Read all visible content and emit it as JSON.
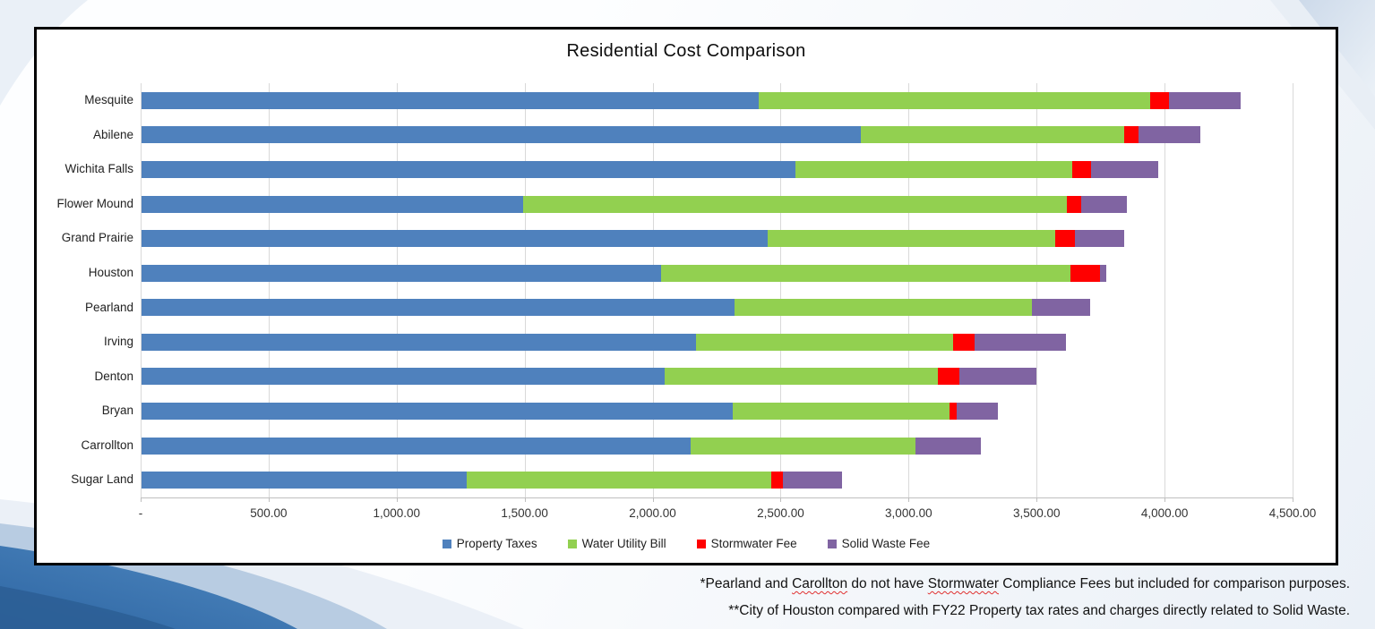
{
  "chart_data": {
    "type": "bar",
    "stacked": true,
    "orientation": "horizontal",
    "title": "Residential Cost Comparison",
    "categories": [
      "Mesquite",
      "Abilene",
      "Wichita Falls",
      "Flower Mound",
      "Grand Prairie",
      "Houston",
      "Pearland",
      "Irving",
      "Denton",
      "Bryan",
      "Carrollton",
      "Sugar Land"
    ],
    "series": [
      {
        "name": "Property Taxes",
        "color": "#4F81BD",
        "values": [
          2410,
          2810,
          2555,
          1490,
          2445,
          2030,
          2315,
          2165,
          2045,
          2310,
          2145,
          1270
        ]
      },
      {
        "name": "Water Utility Bill",
        "color": "#92D050",
        "values": [
          1530,
          1030,
          1080,
          2125,
          1125,
          1600,
          1165,
          1005,
          1065,
          845,
          880,
          1190
        ]
      },
      {
        "name": "Stormwater Fee",
        "color": "#FF0000",
        "values": [
          75,
          55,
          75,
          55,
          75,
          115,
          0,
          85,
          85,
          30,
          0,
          45
        ]
      },
      {
        "name": "Solid Waste Fee",
        "color": "#8064A2",
        "values": [
          280,
          240,
          260,
          180,
          195,
          25,
          225,
          355,
          300,
          160,
          255,
          230
        ]
      }
    ],
    "x_axis": {
      "min": 0,
      "max": 4500,
      "step": 500,
      "tick_labels": [
        "-",
        "500.00",
        "1,000.00",
        "1,500.00",
        "2,000.00",
        "2,500.00",
        "3,000.00",
        "3,500.00",
        "4,000.00",
        "4,500.00"
      ]
    },
    "legend_position": "bottom",
    "grid": true
  },
  "footnotes": {
    "line1": {
      "pre": "*Pearland and ",
      "misspelled1": "Carollton",
      "mid": " do not have ",
      "misspelled2": "Stormwater",
      "post": " Compliance Fees but included for comparison purposes."
    },
    "line2": "**City of Houston compared with FY22 Property tax rates and charges directly related to Solid Waste."
  }
}
